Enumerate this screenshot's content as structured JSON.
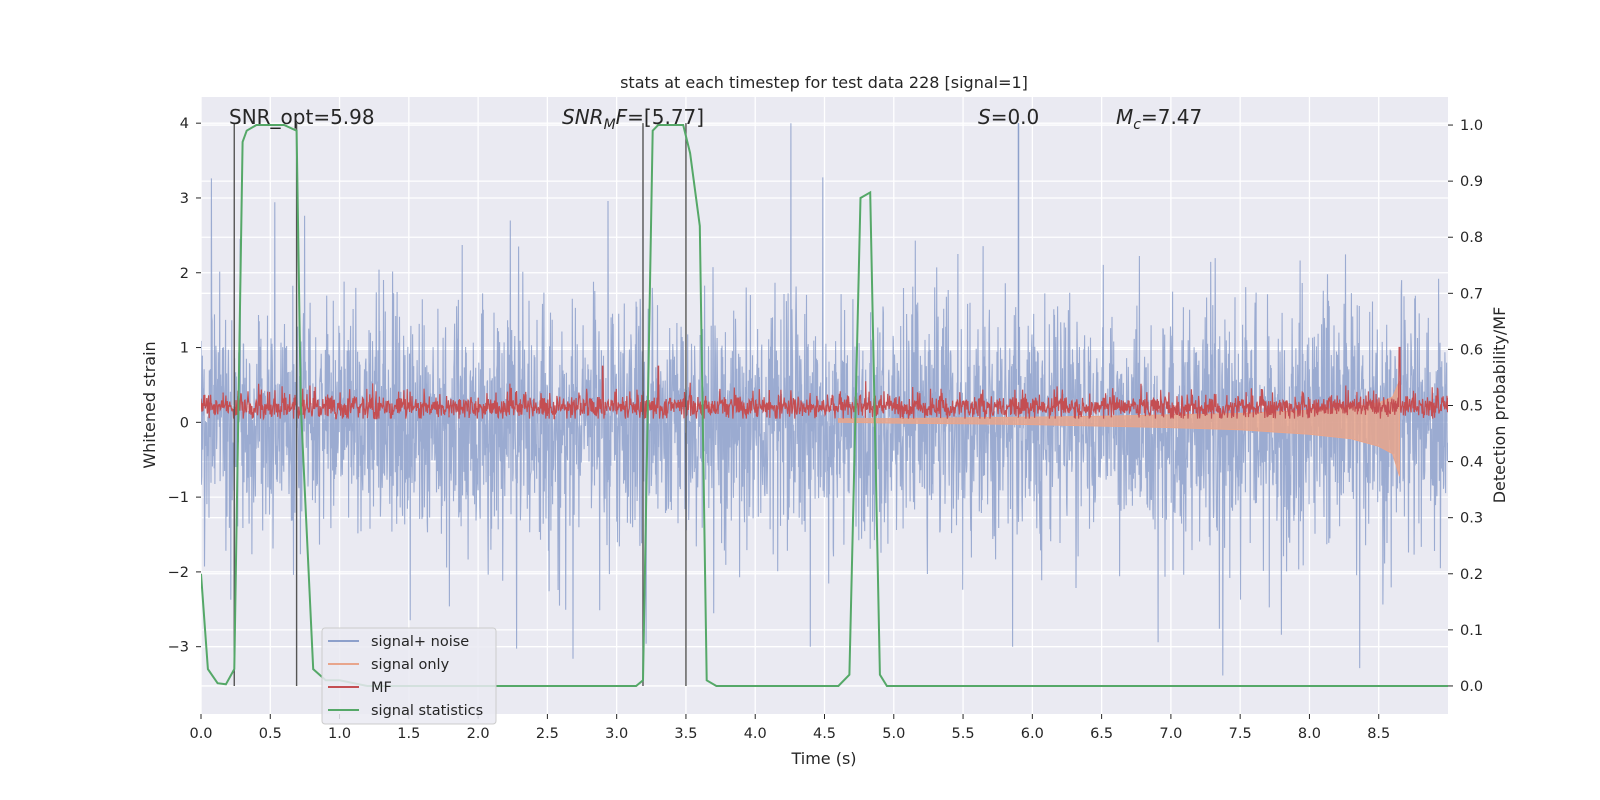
{
  "chart_data": {
    "type": "line",
    "title": "stats at each timestep for test data 228 [signal=1]",
    "xlabel": "Time (s)",
    "ylabel": "Whitened strain",
    "ylabel_right": "Detection probability/MF",
    "xlim": [
      0.0,
      9.0
    ],
    "ylim": [
      -3.9,
      4.35
    ],
    "ylim_right": [
      -0.05,
      1.05
    ],
    "x_ticks": [
      0.0,
      0.5,
      1.0,
      1.5,
      2.0,
      2.5,
      3.0,
      3.5,
      4.0,
      4.5,
      5.0,
      5.5,
      6.0,
      6.5,
      7.0,
      7.5,
      8.0,
      8.5
    ],
    "x_tick_labels": [
      "0.0",
      "0.5",
      "1.0",
      "1.5",
      "2.0",
      "2.5",
      "3.0",
      "3.5",
      "4.0",
      "4.5",
      "5.0",
      "5.5",
      "6.0",
      "6.5",
      "7.0",
      "7.5",
      "8.0",
      "8.5"
    ],
    "y_ticks": [
      -3,
      -2,
      -1,
      0,
      1,
      2,
      3,
      4
    ],
    "y_tick_labels": [
      "−3",
      "−2",
      "−1",
      "0",
      "1",
      "2",
      "3",
      "4"
    ],
    "y_ticks_right": [
      0.0,
      0.1,
      0.2,
      0.3,
      0.4,
      0.5,
      0.6,
      0.7,
      0.8,
      0.9,
      1.0
    ],
    "y_tick_labels_right": [
      "0.0",
      "0.1",
      "0.2",
      "0.3",
      "0.4",
      "0.5",
      "0.6",
      "0.7",
      "0.8",
      "0.9",
      "1.0"
    ],
    "grid": true,
    "legend": {
      "placement": "lower-left",
      "entries": [
        {
          "label": "signal+ noise",
          "color": "#8da0cb"
        },
        {
          "label": "signal only",
          "color": "#e8a58c"
        },
        {
          "label": "MF",
          "color": "#c44e52"
        },
        {
          "label": "signal statistics",
          "color": "#55a868"
        }
      ]
    },
    "annotations": {
      "snr_opt": "SNR_opt=5.98",
      "snr_mf_sym": "SNR",
      "snr_mf_sub": "M",
      "snr_mf_rest": "F=[5.77]",
      "s_sym": "S",
      "s_rest": "=0.0",
      "mc_sym": "M",
      "mc_sub": "c",
      "mc_rest": "=7.47"
    },
    "detection_window_lines_x": [
      0.24,
      0.69,
      3.19,
      3.5
    ],
    "series": [
      {
        "name": "signal+ noise",
        "color": "#8da0cb",
        "axis": "left",
        "kind": "noise band",
        "x_range": [
          0.0,
          9.0
        ],
        "typical_range": [
          -1.5,
          1.5
        ],
        "peak_max": 4.0,
        "peak_min": -3.5
      },
      {
        "name": "signal only",
        "color": "#e8a58c",
        "axis": "left",
        "kind": "chirp envelope",
        "x": [
          4.6,
          5.0,
          5.5,
          6.0,
          6.5,
          7.0,
          7.5,
          8.0,
          8.3,
          8.5,
          8.6,
          8.65
        ],
        "lower": [
          0.0,
          -0.01,
          -0.02,
          -0.03,
          -0.05,
          -0.07,
          -0.1,
          -0.16,
          -0.22,
          -0.32,
          -0.42,
          -0.72
        ],
        "upper": [
          0.05,
          0.05,
          0.06,
          0.07,
          0.08,
          0.1,
          0.12,
          0.16,
          0.2,
          0.26,
          0.34,
          0.55
        ]
      },
      {
        "name": "MF",
        "color": "#c44e52",
        "axis": "left",
        "kind": "noise band",
        "x_range": [
          0.0,
          9.0
        ],
        "baseline": 0.2,
        "typical_range": [
          0.05,
          0.45
        ],
        "spikes": [
          {
            "x": 2.9,
            "y": 0.75
          },
          {
            "x": 3.3,
            "y": 0.75
          },
          {
            "x": 8.65,
            "y": 1.0
          }
        ]
      },
      {
        "name": "signal statistics",
        "color": "#55a868",
        "axis": "right",
        "x": [
          0.0,
          0.05,
          0.12,
          0.18,
          0.24,
          0.3,
          0.33,
          0.4,
          0.5,
          0.6,
          0.69,
          0.72,
          0.81,
          0.9,
          1.0,
          1.2,
          1.5,
          2.0,
          2.5,
          3.0,
          3.14,
          3.19,
          3.26,
          3.3,
          3.4,
          3.48,
          3.53,
          3.6,
          3.65,
          3.72,
          4.0,
          4.4,
          4.6,
          4.68,
          4.76,
          4.83,
          4.9,
          4.95,
          5.0,
          9.0
        ],
        "y": [
          0.2,
          0.03,
          0.005,
          0.003,
          0.03,
          0.97,
          0.99,
          1.0,
          1.0,
          1.0,
          0.99,
          0.5,
          0.03,
          0.01,
          0.01,
          0.0,
          0.0,
          0.0,
          0.0,
          0.0,
          0.0,
          0.01,
          0.99,
          1.0,
          1.0,
          1.0,
          0.95,
          0.82,
          0.01,
          0.0,
          0.0,
          0.0,
          0.0,
          0.02,
          0.87,
          0.88,
          0.02,
          0.0,
          0.0,
          0.0
        ]
      }
    ]
  }
}
